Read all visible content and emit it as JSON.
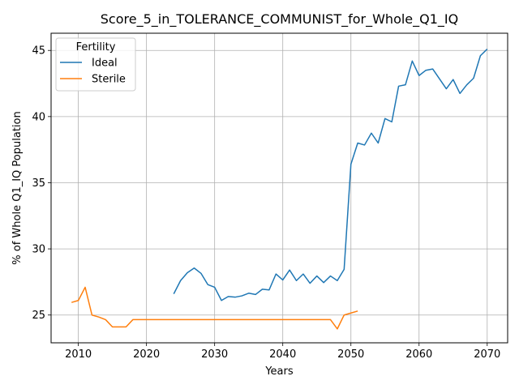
{
  "chart_data": {
    "type": "line",
    "title": "Score_5_in_TOLERANCE_COMMUNIST_for_Whole_Q1_IQ",
    "xlabel": "Years",
    "ylabel": "% of Whole Q1_IQ Population",
    "xlim": [
      2006,
      2073
    ],
    "ylim": [
      22.9,
      46.3
    ],
    "xticks": [
      2010,
      2020,
      2030,
      2040,
      2050,
      2060,
      2070
    ],
    "yticks": [
      25,
      30,
      35,
      40,
      45
    ],
    "grid": true,
    "legend": {
      "title": "Fertility",
      "placement": "top-left"
    },
    "colors": {
      "Ideal": "#1f77b4",
      "Sterile": "#ff7f0e"
    },
    "series": [
      {
        "name": "Ideal",
        "x": [
          2024,
          2025,
          2026,
          2027,
          2028,
          2029,
          2030,
          2031,
          2032,
          2033,
          2034,
          2035,
          2036,
          2037,
          2038,
          2039,
          2040,
          2041,
          2042,
          2043,
          2044,
          2045,
          2046,
          2047,
          2048,
          2049,
          2050,
          2051,
          2052,
          2053,
          2054,
          2055,
          2056,
          2057,
          2058,
          2059,
          2060,
          2061,
          2062,
          2063,
          2064,
          2065,
          2066,
          2067,
          2068,
          2069,
          2070
        ],
        "y": [
          26.6,
          27.6,
          28.2,
          28.55,
          28.15,
          27.3,
          27.1,
          26.1,
          26.4,
          26.35,
          26.45,
          26.65,
          26.55,
          26.95,
          26.9,
          28.1,
          27.65,
          28.4,
          27.6,
          28.1,
          27.4,
          27.95,
          27.45,
          27.95,
          27.6,
          28.45,
          36.4,
          38.0,
          37.85,
          38.75,
          38.0,
          39.85,
          39.6,
          42.3,
          42.4,
          44.2,
          43.1,
          43.5,
          43.6,
          42.85,
          42.1,
          42.8,
          41.75,
          42.4,
          42.9,
          44.6,
          45.1
        ]
      },
      {
        "name": "Sterile",
        "x": [
          2009,
          2010,
          2011,
          2012,
          2013,
          2014,
          2015,
          2016,
          2017,
          2018,
          2019,
          2020,
          2021,
          2022,
          2023,
          2024,
          2025,
          2026,
          2027,
          2028,
          2029,
          2030,
          2031,
          2032,
          2033,
          2034,
          2035,
          2036,
          2037,
          2038,
          2039,
          2040,
          2041,
          2042,
          2043,
          2044,
          2045,
          2046,
          2047,
          2048,
          2049,
          2050,
          2051
        ],
        "y": [
          25.95,
          26.1,
          27.1,
          25.0,
          24.85,
          24.65,
          24.1,
          24.1,
          24.1,
          24.65,
          24.65,
          24.65,
          24.65,
          24.65,
          24.65,
          24.65,
          24.65,
          24.65,
          24.65,
          24.65,
          24.65,
          24.65,
          24.65,
          24.65,
          24.65,
          24.65,
          24.65,
          24.65,
          24.65,
          24.65,
          24.65,
          24.65,
          24.65,
          24.65,
          24.65,
          24.65,
          24.65,
          24.65,
          24.65,
          23.95,
          25.0,
          25.15,
          25.3
        ]
      }
    ]
  }
}
